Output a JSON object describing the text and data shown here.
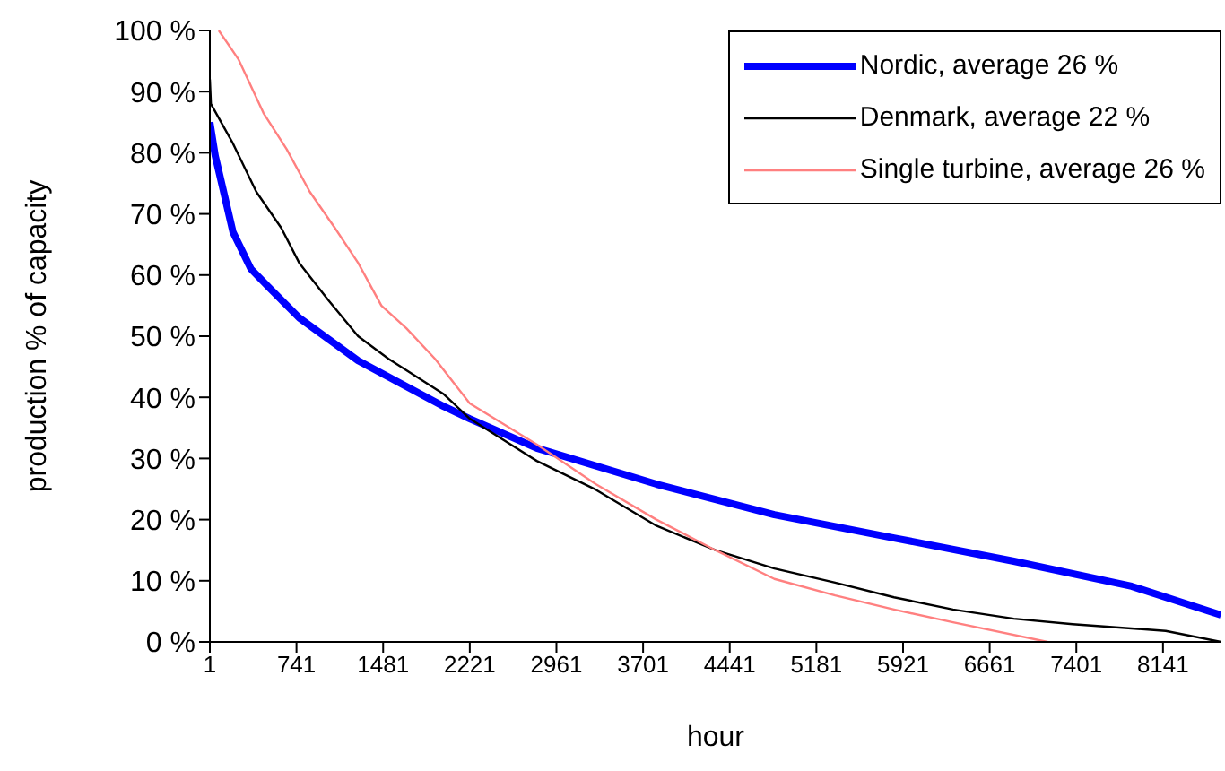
{
  "chart_data": {
    "type": "line",
    "xlabel": "hour",
    "ylabel": "production % of capacity",
    "xlim": [
      1,
      8640
    ],
    "xticks": [
      1,
      741,
      1481,
      2221,
      2961,
      3701,
      4441,
      5181,
      5921,
      6661,
      7401,
      8141
    ],
    "ylim": [
      0,
      100
    ],
    "yticks": [
      {
        "value": 0,
        "label": "0 %"
      },
      {
        "value": 10,
        "label": "10 %"
      },
      {
        "value": 20,
        "label": "20 %"
      },
      {
        "value": 30,
        "label": "30 %"
      },
      {
        "value": 40,
        "label": "40 %"
      },
      {
        "value": 50,
        "label": "50 %"
      },
      {
        "value": 60,
        "label": "60 %"
      },
      {
        "value": 70,
        "label": "70 %"
      },
      {
        "value": 80,
        "label": "80 %"
      },
      {
        "value": 90,
        "label": "90 %"
      },
      {
        "value": 100,
        "label": "100 %"
      }
    ],
    "grid": false,
    "legend": "top right",
    "marker": "none",
    "line_style": "solid",
    "series": [
      {
        "name": "Nordic, average 26 %",
        "color": "#0000ff",
        "x": [
          1,
          47,
          199,
          352,
          505,
          764,
          1267,
          2000,
          2221,
          2793,
          3815,
          4822,
          5844,
          6867,
          7873,
          8636
        ],
        "values": [
          85,
          79.5,
          67,
          61,
          58,
          53,
          46,
          38.5,
          36.5,
          31.7,
          25.8,
          20.8,
          17,
          13.2,
          9.1,
          4.4
        ]
      },
      {
        "name": "Denmark, average 22 %",
        "color": "#000000",
        "x": [
          1,
          10,
          199,
          398,
          611,
          764,
          1008,
          1267,
          1527,
          2000,
          2221,
          2793,
          3297,
          3815,
          4319,
          4822,
          5341,
          5844,
          6348,
          6867,
          7370,
          8164,
          8636
        ],
        "values": [
          92,
          88,
          81.5,
          73.6,
          67.7,
          62,
          56,
          50,
          46.3,
          40.5,
          36.5,
          29.6,
          24.9,
          19,
          15,
          12,
          9.7,
          7.3,
          5.3,
          3.8,
          2.9,
          1.8,
          0
        ]
      },
      {
        "name": "Single turbine, average 26 %",
        "color": "#ff8080",
        "x": [
          77,
          245,
          459,
          657,
          855,
          1069,
          1267,
          1466,
          1679,
          1924,
          2221,
          2793,
          3297,
          3815,
          4319,
          4822,
          5341,
          5844,
          6348,
          7155
        ],
        "values": [
          100,
          95.3,
          86.5,
          80.6,
          73.6,
          67.7,
          62,
          55,
          51.3,
          46.3,
          39,
          32.3,
          25.8,
          20,
          15,
          10.3,
          7.6,
          5.3,
          3.2,
          0
        ]
      }
    ]
  }
}
